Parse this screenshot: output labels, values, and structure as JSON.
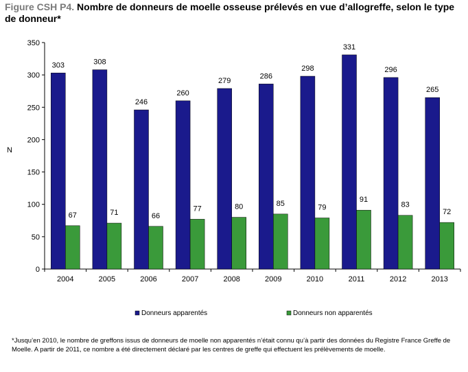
{
  "title": {
    "prefix": "Figure CSH P4.",
    "text": " Nombre de donneurs de moelle osseuse prélevés en vue d’allogreffe, selon le type de donneur*"
  },
  "chart_data": {
    "type": "bar",
    "title": "",
    "xlabel": "",
    "ylabel": "N",
    "categories": [
      "2004",
      "2005",
      "2006",
      "2007",
      "2008",
      "2009",
      "2010",
      "2011",
      "2012",
      "2013"
    ],
    "series": [
      {
        "name": "Donneurs apparentés",
        "color": "#1a1a8c",
        "values": [
          303,
          308,
          246,
          260,
          279,
          286,
          298,
          331,
          296,
          265
        ]
      },
      {
        "name": "Donneurs non apparentés",
        "color": "#3a9a3a",
        "values": [
          67,
          71,
          66,
          77,
          80,
          85,
          79,
          91,
          83,
          72
        ]
      }
    ],
    "ylim": [
      0,
      350
    ],
    "yticks": [
      0,
      50,
      100,
      150,
      200,
      250,
      300,
      350
    ],
    "grid": false,
    "legend": "bottom"
  },
  "footnote": "*Jusqu’en 2010, le nombre de greffons issus de donneurs de moelle non apparentés n’était connu qu’à partir des données du Registre France Greffe de Moelle. A partir de 2011, ce nombre a été directement déclaré par les centres de greffe qui effectuent les prélèvements de moelle."
}
